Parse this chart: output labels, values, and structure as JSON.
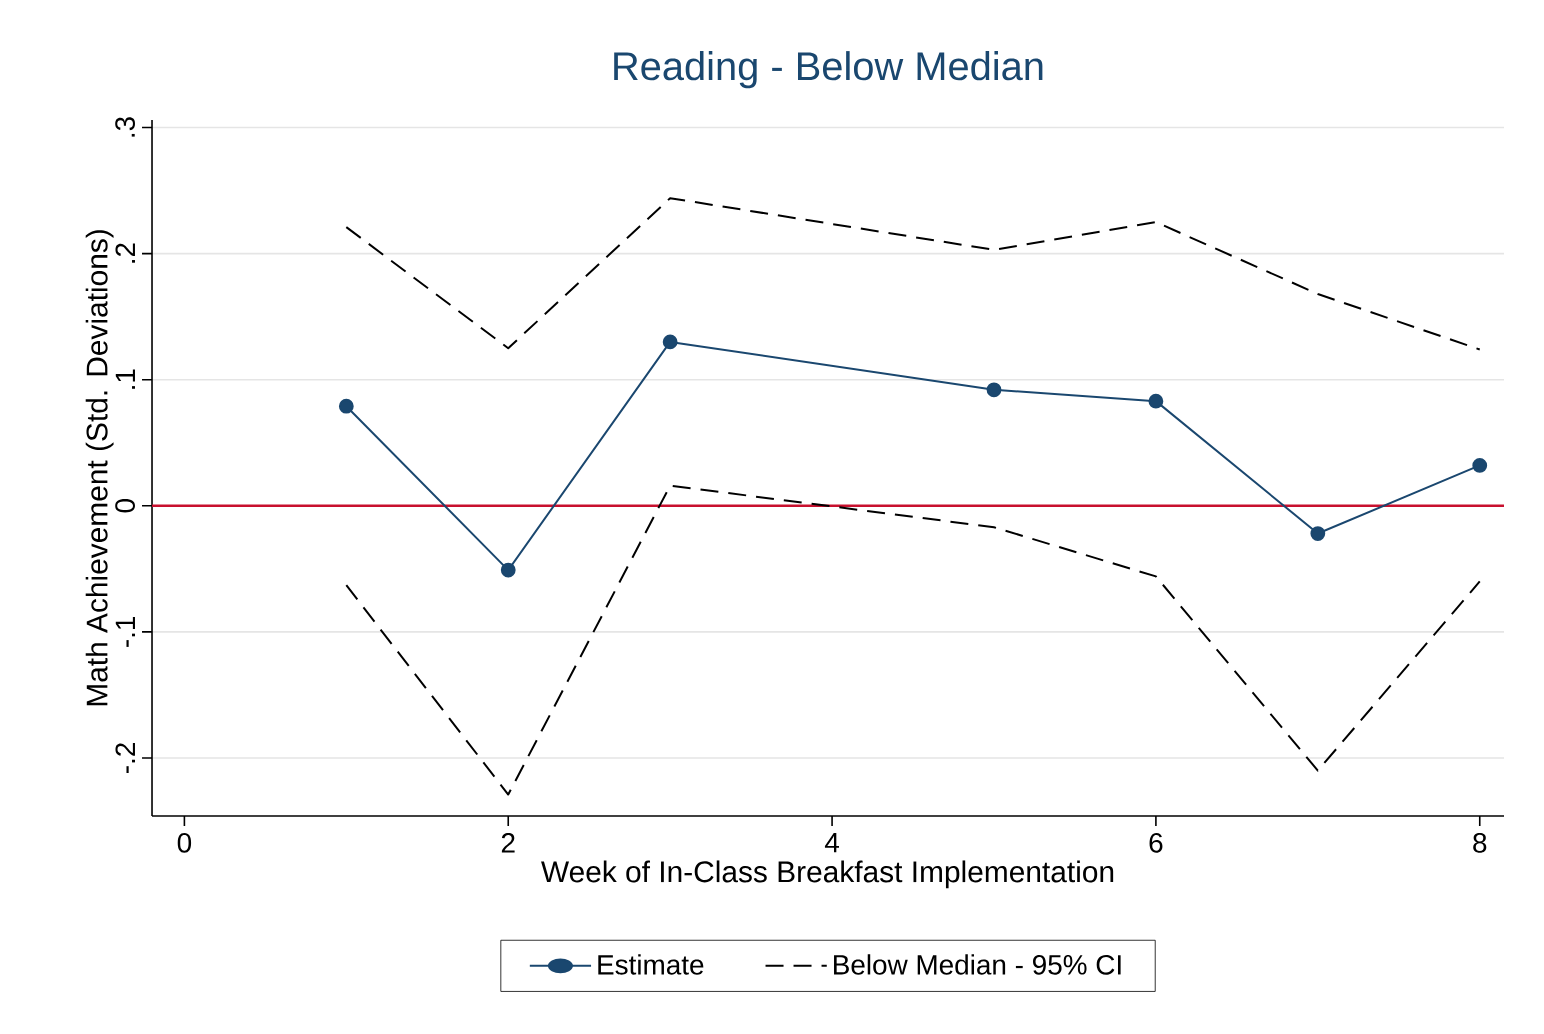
{
  "chart_data": {
    "type": "line",
    "title": "Reading - Below Median",
    "xlabel": "Week of In-Class Breakfast Implementation",
    "ylabel": "Math Achievement (Std. Deviations)",
    "x": [
      1,
      2,
      3,
      5,
      6,
      7,
      8
    ],
    "series": [
      {
        "name": "Estimate",
        "color": "#1a476f",
        "marker": "circle",
        "line_style": "solid",
        "values": [
          0.079,
          -0.051,
          0.13,
          0.092,
          0.083,
          -0.022,
          0.032
        ]
      },
      {
        "name": "Below Median - 95% CI",
        "color": "#000000",
        "marker": "none",
        "line_style": "dashed",
        "values": [
          0.221,
          0.125,
          0.244,
          0.203,
          0.225,
          0.168,
          0.124
        ]
      },
      {
        "color": "#000000",
        "marker": "none",
        "line_style": "dashed",
        "values": [
          -0.063,
          -0.229,
          0.016,
          -0.017,
          -0.056,
          -0.21,
          -0.06
        ]
      }
    ],
    "xlim": [
      -0.2,
      8.15
    ],
    "ylim": [
      -0.246,
      0.306
    ],
    "xticks": [
      0,
      2,
      4,
      6,
      8
    ],
    "yticks": [
      {
        "value": -0.2,
        "label": "-.2"
      },
      {
        "value": -0.1,
        "label": "-.1"
      },
      {
        "value": 0,
        "label": "0"
      },
      {
        "value": 0.1,
        "label": ".1"
      },
      {
        "value": 0.2,
        "label": ".2"
      },
      {
        "value": 0.3,
        "label": ".3"
      }
    ],
    "grid": "y",
    "legend": "bottom",
    "ref_lines": [
      {
        "axis": "y",
        "value": 0,
        "color": "#c8102e"
      }
    ]
  }
}
